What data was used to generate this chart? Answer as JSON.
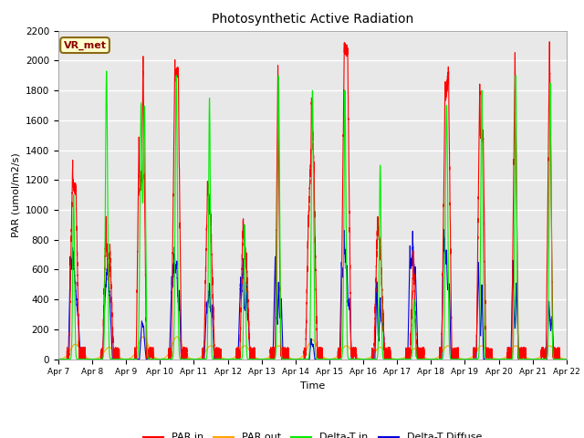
{
  "title": "Photosynthetic Active Radiation",
  "ylabel": "PAR (umol/m2/s)",
  "xlabel": "Time",
  "source_label": "VR_met",
  "ylim": [
    0,
    2200
  ],
  "background_color": "#e8e8e8",
  "grid_color": "white",
  "colors": {
    "PAR_in": "#ff0000",
    "PAR_out": "#ffa500",
    "Delta_T_in": "#00ee00",
    "Delta_T_Diffuse": "#0000dd"
  },
  "legend_labels": [
    "PAR in",
    "PAR out",
    "Delta-T in",
    "Delta-T Diffuse"
  ],
  "x_tick_labels": [
    "Apr 7",
    "Apr 8",
    "Apr 9",
    "Apr 10",
    "Apr 11",
    "Apr 12",
    "Apr 13",
    "Apr 14",
    "Apr 15",
    "Apr 16",
    "Apr 17",
    "Apr 18",
    "Apr 19",
    "Apr 20",
    "Apr 21",
    "Apr 22"
  ],
  "yticks": [
    0,
    200,
    400,
    600,
    800,
    1000,
    1200,
    1400,
    1600,
    1800,
    2000,
    2200
  ],
  "n_days": 15,
  "pts_per_day": 480
}
